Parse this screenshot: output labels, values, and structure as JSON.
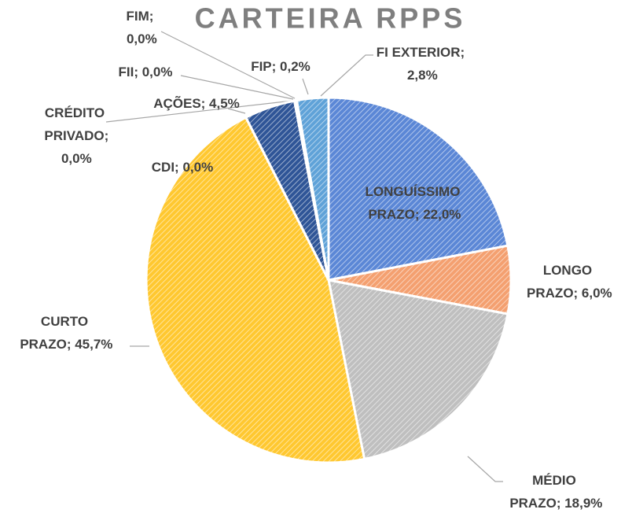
{
  "chart_data": {
    "type": "pie",
    "title": "CARTEIRA RPPS",
    "categories": [
      "LONGUÍSSIMO PRAZO",
      "LONGO PRAZO",
      "MÉDIO PRAZO",
      "CURTO PRAZO",
      "CDI",
      "CRÉDITO PRIVADO",
      "AÇÕES",
      "FII",
      "FIM",
      "FIP",
      "FI EXTERIOR"
    ],
    "values": [
      22.0,
      6.0,
      18.9,
      45.7,
      0.0,
      0.0,
      4.5,
      0.0,
      0.0,
      0.2,
      2.8
    ],
    "value_labels": [
      "LONGUÍSSIMO PRAZO; 22,0%",
      "LONGO PRAZO; 6,0%",
      "MÉDIO PRAZO; 18,9%",
      "CURTO PRAZO; 45,7%",
      "CDI; 0,0%",
      "CRÉDITO PRIVADO; 0,0%",
      "AÇÕES; 4,5%",
      "FII; 0,0%",
      "FIM; 0,0%",
      "FIP; 0,2%",
      "FI EXTERIOR; 2,8%"
    ],
    "colors": [
      "#5b87d6",
      "#f4a070",
      "#bfbfbf",
      "#ffc830",
      "#7fa6dc",
      "#a9a9a9",
      "#2f5597",
      "#8faadc",
      "#9dc3e6",
      "#4472c4",
      "#5fa2d8"
    ]
  }
}
